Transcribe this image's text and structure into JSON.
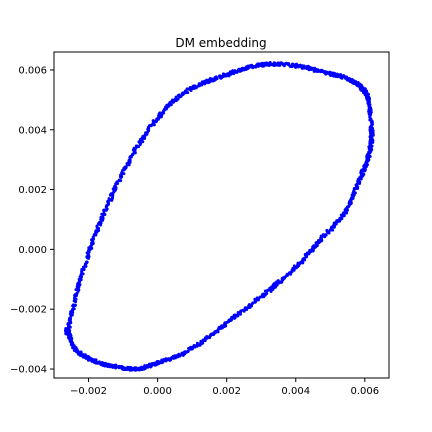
{
  "chart_data": {
    "type": "scatter",
    "title": "DM embedding",
    "xlabel": "",
    "ylabel": "",
    "xlim": [
      -0.003,
      0.0067
    ],
    "ylim": [
      -0.0043,
      0.0066
    ],
    "grid": false,
    "legend": "none",
    "x_ticks": [
      -0.002,
      0.0,
      0.002,
      0.004,
      0.006
    ],
    "x_tick_labels": [
      "−0.002",
      "0.000",
      "0.002",
      "0.004",
      "0.006"
    ],
    "y_ticks": [
      -0.004,
      -0.002,
      0.0,
      0.002,
      0.004,
      0.006
    ],
    "y_tick_labels": [
      "−0.004",
      "−0.002",
      "0.000",
      "0.002",
      "0.004",
      "0.006"
    ],
    "marker_color": "#0000ff",
    "series": [
      {
        "shape": "closed-loop",
        "x": [
          -0.0026,
          -0.0023,
          -0.0019,
          -0.0014,
          -0.0008,
          -0.0002,
          0.0005,
          0.0012,
          0.0019,
          0.0027,
          0.0034,
          0.0042,
          0.0049,
          0.0055,
          0.0059,
          0.0061,
          0.0062,
          0.0061,
          0.0058,
          0.0054,
          0.0047,
          0.004,
          0.0032,
          0.0023,
          0.0015,
          0.0007,
          0.0,
          -0.0006,
          -0.0013,
          -0.0019,
          -0.0024,
          -0.0026
        ],
        "y": [
          -0.0027,
          -0.0013,
          0.0002,
          0.0016,
          0.003,
          0.0041,
          0.005,
          0.0055,
          0.0058,
          0.0061,
          0.0062,
          0.0061,
          0.0059,
          0.0057,
          0.0054,
          0.005,
          0.0039,
          0.0031,
          0.0022,
          0.0012,
          0.0003,
          -0.0006,
          -0.0014,
          -0.0022,
          -0.0029,
          -0.0035,
          -0.0038,
          -0.004,
          -0.0039,
          -0.0037,
          -0.0033,
          -0.0027
        ]
      }
    ]
  }
}
